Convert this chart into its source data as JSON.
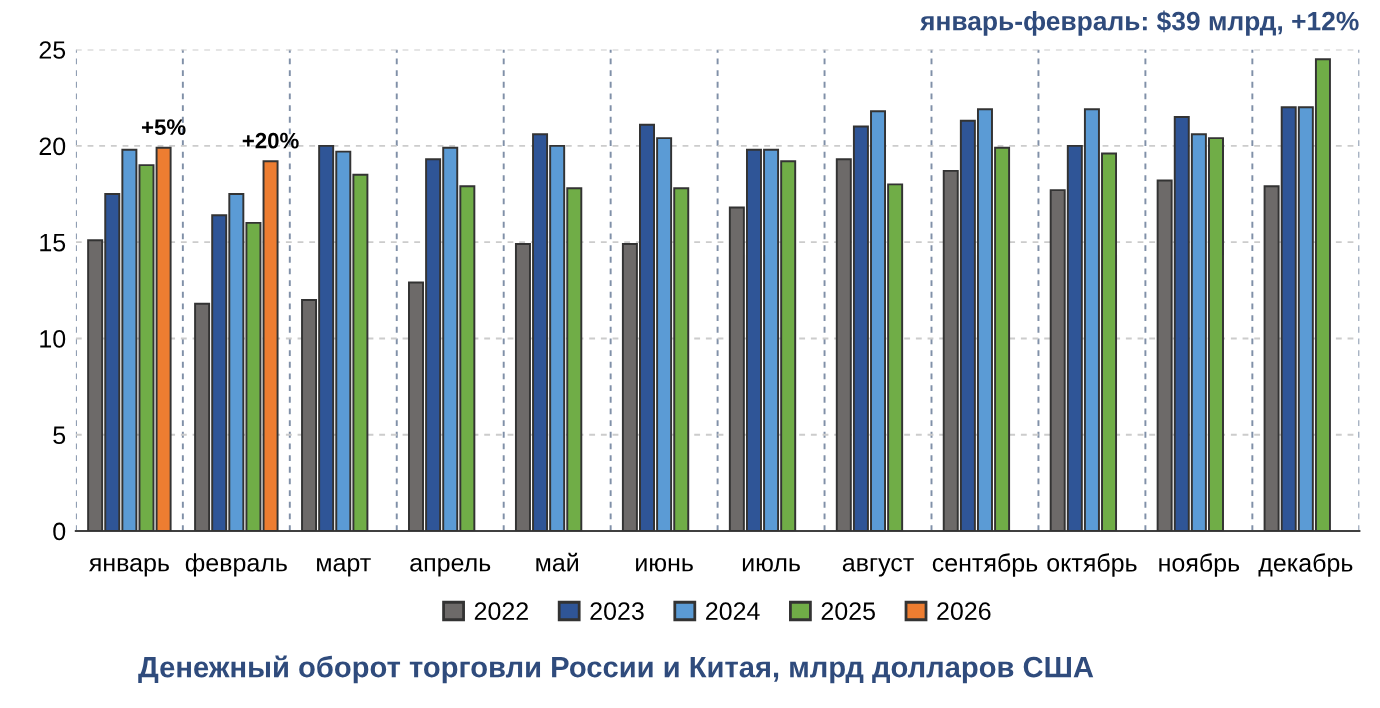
{
  "chart_data": {
    "type": "bar",
    "title": "Денежный оборот торговли России и Китая, млрд долларов США",
    "categories": [
      "январь",
      "февраль",
      "март",
      "апрель",
      "май",
      "июнь",
      "июль",
      "август",
      "сентябрь",
      "октябрь",
      "ноябрь",
      "декабрь"
    ],
    "series": [
      {
        "name": "2022",
        "color": "#6d6a69",
        "values": [
          15.1,
          11.8,
          12.0,
          12.9,
          14.9,
          14.9,
          16.8,
          19.3,
          18.7,
          17.7,
          18.2,
          17.9
        ]
      },
      {
        "name": "2023",
        "color": "#2f5597",
        "values": [
          17.5,
          16.4,
          20.0,
          19.3,
          20.6,
          21.1,
          19.8,
          21.0,
          21.3,
          20.0,
          21.5,
          22.0
        ]
      },
      {
        "name": "2024",
        "color": "#5b9bd5",
        "values": [
          19.8,
          17.5,
          19.7,
          19.9,
          20.0,
          20.4,
          19.8,
          21.8,
          21.9,
          21.9,
          20.6,
          22.0
        ]
      },
      {
        "name": "2025",
        "color": "#70ad47",
        "values": [
          19.0,
          16.0,
          18.5,
          17.9,
          17.8,
          17.8,
          19.2,
          18.0,
          19.9,
          19.6,
          20.4,
          24.5
        ]
      },
      {
        "name": "2026",
        "color": "#ed7d31",
        "values": [
          19.9,
          19.2,
          null,
          null,
          null,
          null,
          null,
          null,
          null,
          null,
          null,
          null
        ]
      }
    ],
    "ylim": [
      0,
      25
    ],
    "yticks": [
      0,
      5,
      10,
      15,
      20,
      25
    ],
    "grid": true,
    "legend": "bottom",
    "annotations": [
      "+5%",
      "+20%",
      "январь-февраль: $39 млрд, +12%"
    ]
  }
}
